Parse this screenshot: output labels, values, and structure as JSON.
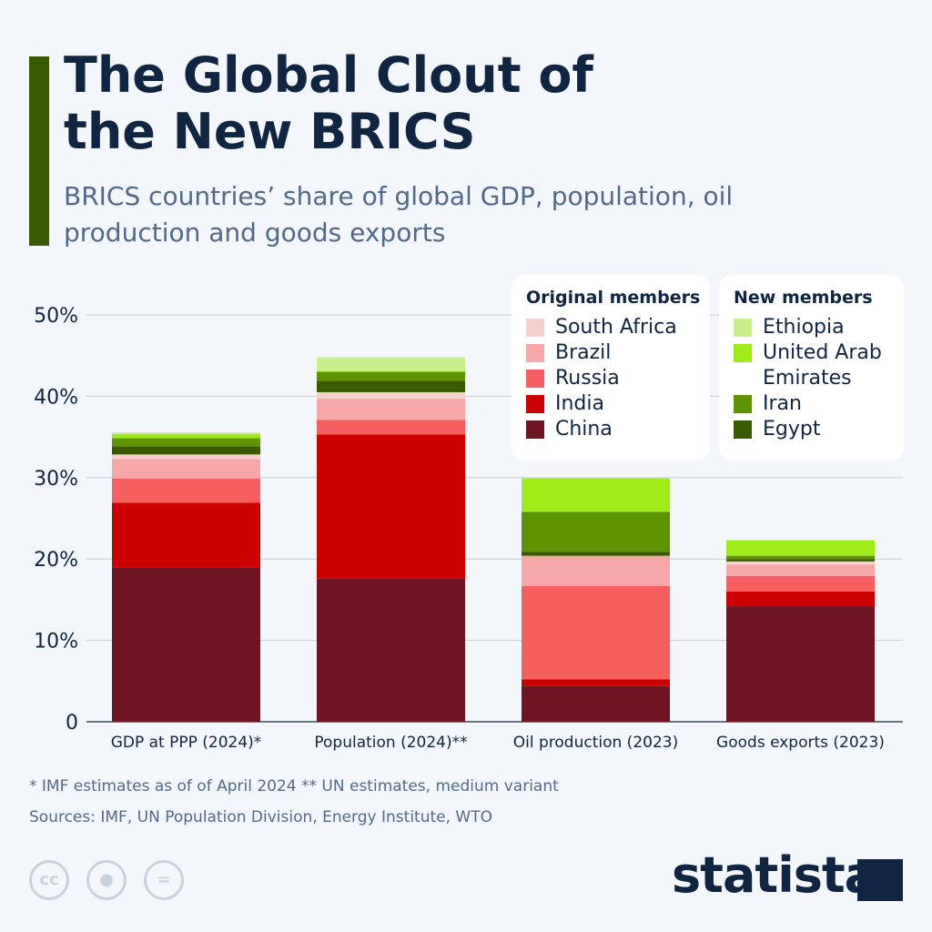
{
  "title": "The Global Clout of the New BRICS",
  "subtitle": "BRICS countries’ share of global GDP, population, oil production and goods exports",
  "legend": {
    "original_title": "Original members",
    "new_title": "New members"
  },
  "footnote": "* IMF estimates as of of April 2024    ** UN estimates, medium variant",
  "sources": "Sources: IMF, UN Population Division, Energy Institute, WTO",
  "license_icons": [
    "cc-icon",
    "attribution-icon",
    "no-derivatives-icon"
  ],
  "license_text": {
    "cc": "cc",
    "eq": "="
  },
  "brand": "statista",
  "chart_data": {
    "type": "bar",
    "stacked": true,
    "categories": [
      "GDP at PPP (2024)*",
      "Population (2024)**",
      "Oil production (2023)",
      "Goods exports (2023)"
    ],
    "ylim": [
      0,
      50
    ],
    "yticks": [
      "0",
      "10%",
      "20%",
      "30%",
      "40%",
      "50%"
    ],
    "grid": true,
    "legend_position": "top-right",
    "series": [
      {
        "name": "China",
        "group": "original",
        "color": "#6e1423",
        "values": [
          19.0,
          17.6,
          4.4,
          14.2
        ]
      },
      {
        "name": "India",
        "group": "original",
        "color": "#cc0000",
        "values": [
          7.9,
          17.7,
          0.8,
          1.8
        ]
      },
      {
        "name": "Russia",
        "group": "original",
        "color": "#f55f5f",
        "values": [
          3.0,
          1.8,
          11.5,
          1.9
        ]
      },
      {
        "name": "Brazil",
        "group": "original",
        "color": "#f6a8a8",
        "values": [
          2.4,
          2.6,
          3.7,
          1.4
        ]
      },
      {
        "name": "South Africa",
        "group": "original",
        "color": "#f7cfcf",
        "values": [
          0.55,
          0.8,
          0,
          0.4
        ]
      },
      {
        "name": "Egypt",
        "group": "new",
        "color": "#3a5a00",
        "values": [
          1.0,
          1.4,
          0.5,
          0.3
        ]
      },
      {
        "name": "Iran",
        "group": "new",
        "color": "#5e9400",
        "values": [
          1.0,
          1.1,
          4.9,
          0.4
        ]
      },
      {
        "name": "United Arab Emirates",
        "group": "new",
        "color": "#9eeb1a",
        "values": [
          0.5,
          0.1,
          4.1,
          1.9
        ]
      },
      {
        "name": "Ethiopia",
        "group": "new",
        "color": "#c9ef8a",
        "values": [
          0.2,
          1.7,
          0,
          0
        ]
      }
    ]
  }
}
